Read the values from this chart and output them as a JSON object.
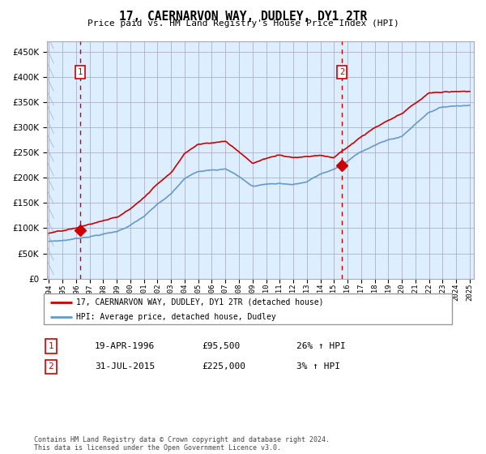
{
  "title": "17, CAERNARVON WAY, DUDLEY, DY1 2TR",
  "subtitle": "Price paid vs. HM Land Registry's House Price Index (HPI)",
  "legend_line1": "17, CAERNARVON WAY, DUDLEY, DY1 2TR (detached house)",
  "legend_line2": "HPI: Average price, detached house, Dudley",
  "annotation1_date": "19-APR-1996",
  "annotation1_price": "£95,500",
  "annotation1_hpi": "26% ↑ HPI",
  "annotation2_date": "31-JUL-2015",
  "annotation2_price": "£225,000",
  "annotation2_hpi": "3% ↑ HPI",
  "footer": "Contains HM Land Registry data © Crown copyright and database right 2024.\nThis data is licensed under the Open Government Licence v3.0.",
  "red_color": "#cc0000",
  "blue_color": "#6699cc",
  "bg_color": "#ddeeff",
  "grid_color": "#aaaacc",
  "ylim": [
    0,
    470000
  ],
  "yticks": [
    0,
    50000,
    100000,
    150000,
    200000,
    250000,
    300000,
    350000,
    400000,
    450000
  ],
  "sale1_year": 1996.3,
  "sale1_value": 95500,
  "sale2_year": 2015.58,
  "sale2_value": 225000,
  "start_year": 1994,
  "end_year": 2025,
  "hpi_knots_x": [
    1994,
    1995,
    1996,
    1997,
    1998,
    1999,
    2000,
    2001,
    2002,
    2003,
    2004,
    2005,
    2006,
    2007,
    2008,
    2009,
    2010,
    2011,
    2012,
    2013,
    2014,
    2015,
    2016,
    2017,
    2018,
    2019,
    2020,
    2021,
    2022,
    2023,
    2024,
    2025
  ],
  "hpi_knots_y": [
    74000,
    76000,
    80000,
    85000,
    90000,
    95000,
    108000,
    125000,
    148000,
    168000,
    198000,
    212000,
    218000,
    220000,
    205000,
    185000,
    190000,
    192000,
    190000,
    195000,
    210000,
    220000,
    235000,
    255000,
    268000,
    278000,
    285000,
    310000,
    335000,
    345000,
    348000,
    350000
  ],
  "red_knots_x": [
    1994,
    1995,
    1996,
    1997,
    1998,
    1999,
    2000,
    2001,
    2002,
    2003,
    2004,
    2005,
    2006,
    2007,
    2008,
    2009,
    2010,
    2011,
    2012,
    2013,
    2014,
    2015,
    2016,
    2017,
    2018,
    2019,
    2020,
    2021,
    2022,
    2023,
    2024,
    2025
  ],
  "red_knots_y": [
    90000,
    93000,
    97000,
    105000,
    112000,
    118000,
    135000,
    158000,
    185000,
    210000,
    248000,
    268000,
    272000,
    275000,
    255000,
    232000,
    242000,
    248000,
    245000,
    248000,
    252000,
    248000,
    268000,
    288000,
    305000,
    318000,
    330000,
    350000,
    370000,
    372000,
    373000,
    375000
  ]
}
